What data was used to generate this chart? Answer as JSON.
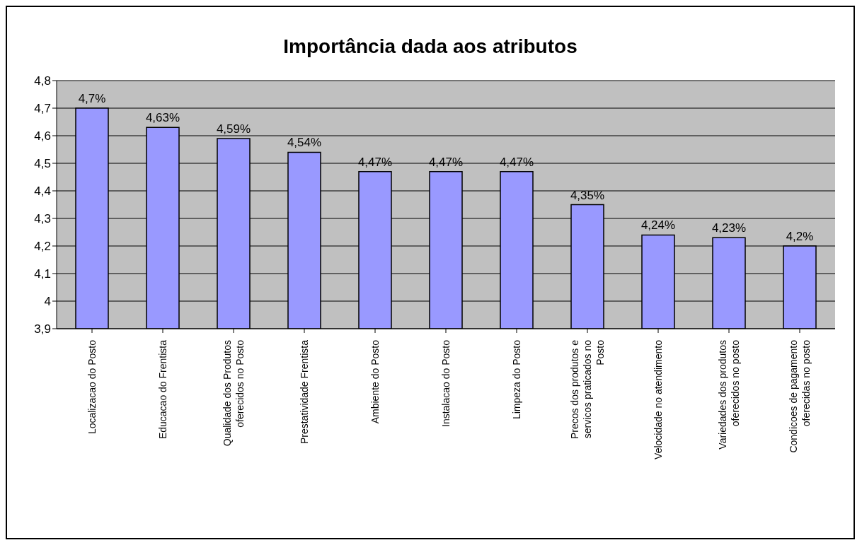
{
  "chart_data": {
    "type": "bar",
    "title": "Importância dada aos atributos",
    "categories": [
      "Localizacao do Posto",
      "Educacao do Frentista",
      "Qualidade dos Produtos oferecidos no Posto",
      "Prestatividade Frentista",
      "Ambiente do Posto",
      "Instalacao do Posto",
      "Limpeza do Posto",
      "Precos dos produtos e servicos praticados no Posto",
      "Velocidade no atendimento",
      "Variedades dos produtos oferecidos no posto",
      "Condicoes de pagamento oferecidas no posto"
    ],
    "values": [
      4.7,
      4.63,
      4.59,
      4.54,
      4.47,
      4.47,
      4.47,
      4.35,
      4.24,
      4.23,
      4.2
    ],
    "value_labels": [
      "4,7%",
      "4,63%",
      "4,59%",
      "4,54%",
      "4,47%",
      "4,47%",
      "4,47%",
      "4,35%",
      "4,24%",
      "4,23%",
      "4,2%"
    ],
    "color": "#9999ff",
    "ylim": [
      3.9,
      4.8
    ],
    "yticks": [
      {
        "value": 3.9,
        "label": "3,9"
      },
      {
        "value": 4,
        "label": "4"
      },
      {
        "value": 4.1,
        "label": "4,1"
      },
      {
        "value": 4.2,
        "label": "4,2"
      },
      {
        "value": 4.3,
        "label": "4,3"
      },
      {
        "value": 4.4,
        "label": "4,4"
      },
      {
        "value": 4.5,
        "label": "4,5"
      },
      {
        "value": 4.6,
        "label": "4,6"
      },
      {
        "value": 4.7,
        "label": "4,7"
      },
      {
        "value": 4.8,
        "label": "4,8"
      }
    ],
    "grid": "y",
    "legend": false
  }
}
